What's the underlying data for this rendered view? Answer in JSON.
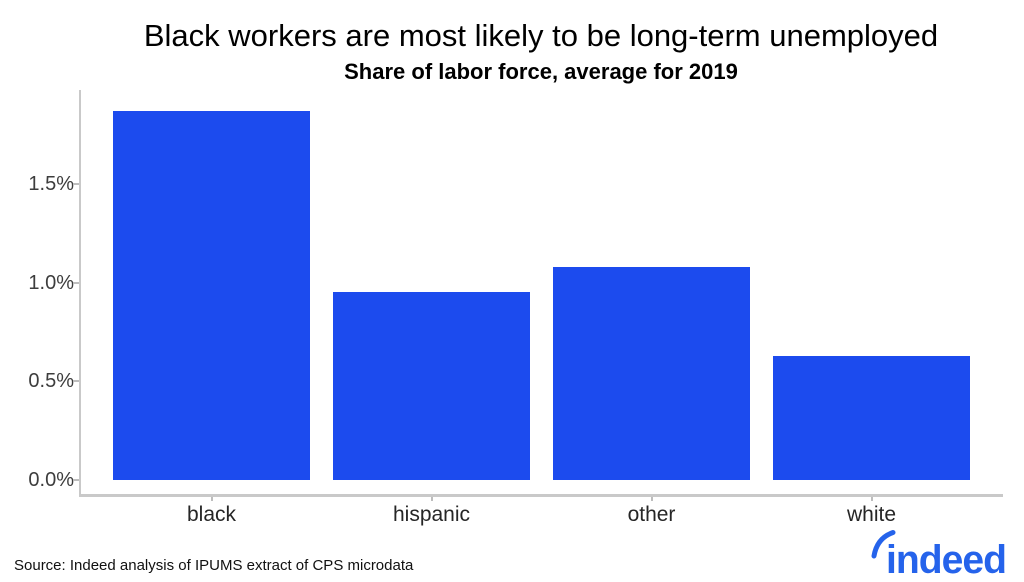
{
  "chart_data": {
    "type": "bar",
    "title": "Black workers are most likely to be long-term unemployed",
    "subtitle": "Share of labor force, average for 2019",
    "categories": [
      "black",
      "hispanic",
      "other",
      "white"
    ],
    "values": [
      1.87,
      0.95,
      1.08,
      0.63
    ],
    "unit": "%",
    "xlabel": "",
    "ylabel": "",
    "ylim": [
      0,
      1.9
    ],
    "yticks": [
      {
        "value": 0.0,
        "label": "0.0%"
      },
      {
        "value": 0.5,
        "label": "0.5%"
      },
      {
        "value": 1.0,
        "label": "1.0%"
      },
      {
        "value": 1.5,
        "label": "1.5%"
      }
    ],
    "grid": false,
    "legend": "none",
    "bar_color": "#1c4bee"
  },
  "footer": {
    "source": "Source: Indeed analysis of IPUMS extract of CPS microdata",
    "logo_text": "indeed",
    "logo_color": "#2563eb"
  }
}
